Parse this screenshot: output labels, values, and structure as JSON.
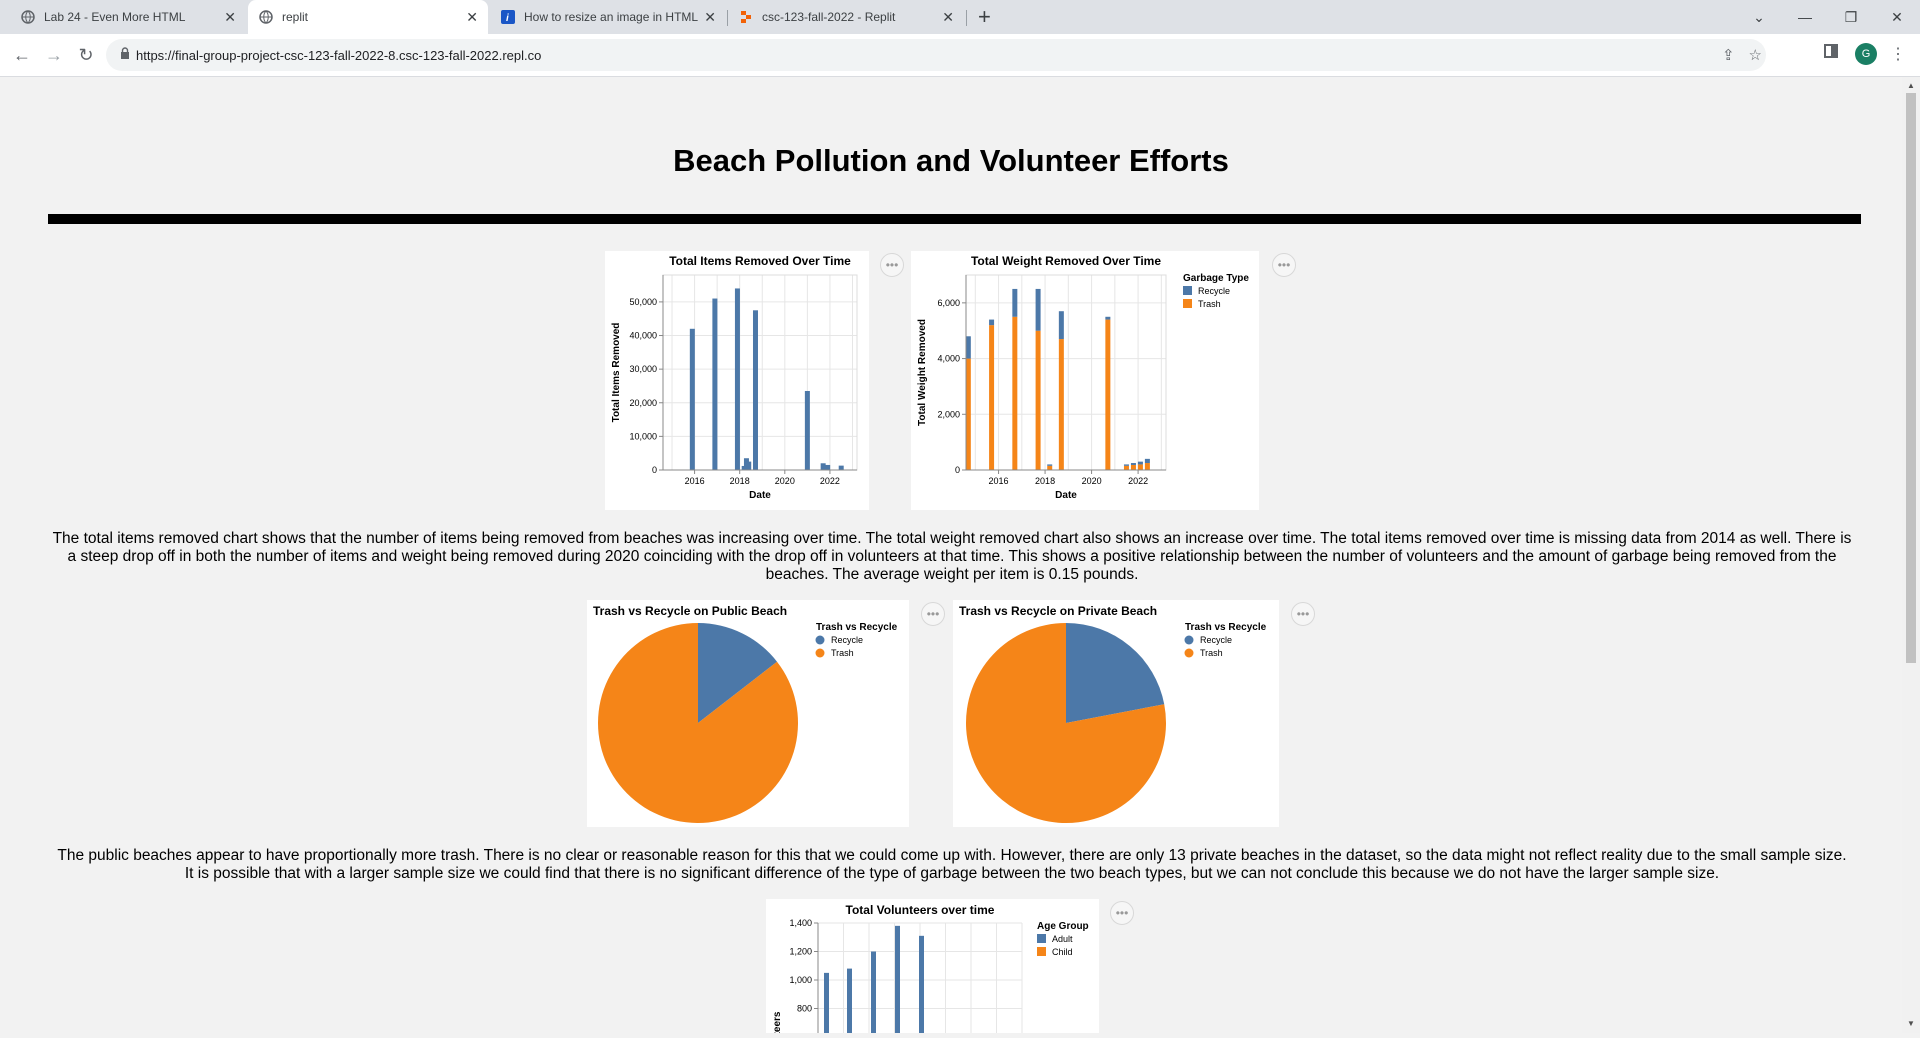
{
  "browser": {
    "tabs": [
      {
        "title": "Lab 24 - Even More HTML",
        "icon": "globe-icon"
      },
      {
        "title": "replit",
        "icon": "globe-icon"
      },
      {
        "title": "How to resize an image in HTML",
        "icon": "info-icon"
      },
      {
        "title": "csc-123-fall-2022 - Replit",
        "icon": "replit-icon"
      }
    ],
    "url": "https://final-group-project-csc-123-fall-2022-8.csc-123-fall-2022.repl.co",
    "avatar_letter": "G"
  },
  "page": {
    "title": "Beach Pollution and Volunteer Efforts",
    "paragraph1": "The total items removed chart shows that the number of items being removed from beaches was increasing over time. The total weight removed chart also shows an increase over time. The total items removed over time is missing data from 2014 as well. There is a steep drop off in both the number of items and weight being removed during 2020 coinciding with the drop off in volunteers at that time. This shows a positive relationship between the number of volunteers and the amount of garbage being removed from the beaches. The average weight per item is 0.15 pounds.",
    "paragraph2": "The public beaches appear to have proportionally more trash. There is no clear or reasonable reason for this that we could come up with. However, there are only 13 private beaches in the dataset, so the data might not reflect reality due to the small sample size. It is possible that with a larger sample size we could find that there is no significant difference of the type of garbage between the two beach types, but we can not conclude this because we do not have the larger sample size."
  },
  "colors": {
    "recycle": "#4c78a8",
    "trash": "#f58518"
  },
  "chart_data": [
    {
      "type": "bar",
      "title": "Total Items Removed Over Time",
      "xlabel": "Date",
      "ylabel": "Total Items Removed",
      "xticks": [
        "2016",
        "2018",
        "2020",
        "2022"
      ],
      "yticks": [
        "0",
        "10,000",
        "20,000",
        "30,000",
        "40,000",
        "50,000"
      ],
      "xlim": [
        2014.6,
        2023.2
      ],
      "ylim": [
        0,
        58000
      ],
      "x": [
        2015.9,
        2016.9,
        2017.9,
        2018.2,
        2018.3,
        2018.4,
        2018.7,
        2021.0,
        2021.7,
        2021.9,
        2022.5
      ],
      "values": [
        42000,
        51000,
        54000,
        1200,
        3500,
        2500,
        47500,
        23500,
        2000,
        1500,
        1300
      ],
      "series_color": "#4c78a8"
    },
    {
      "type": "bar",
      "title": "Total Weight Removed Over Time",
      "xlabel": "Date",
      "ylabel": "Total Weight Removed",
      "xticks": [
        "2016",
        "2018",
        "2020",
        "2022"
      ],
      "yticks": [
        "0",
        "2,000",
        "4,000",
        "6,000"
      ],
      "xlim": [
        2014.6,
        2023.2
      ],
      "ylim": [
        0,
        7000
      ],
      "legend": {
        "title": "Garbage Type",
        "items": [
          "Recycle",
          "Trash"
        ],
        "position": "right"
      },
      "x": [
        2014.7,
        2015.7,
        2016.7,
        2017.7,
        2018.2,
        2018.7,
        2020.7,
        2021.5,
        2021.8,
        2022.1,
        2022.4
      ],
      "series": [
        {
          "name": "Trash",
          "values": [
            4000,
            5200,
            5500,
            5000,
            150,
            4700,
            5400,
            150,
            180,
            200,
            250
          ]
        },
        {
          "name": "Recycle",
          "values": [
            800,
            200,
            1000,
            1500,
            50,
            1000,
            100,
            50,
            70,
            100,
            150
          ]
        }
      ]
    },
    {
      "type": "pie",
      "title": "Trash vs Recycle on Public Beach",
      "legend": {
        "title": "Trash vs Recycle",
        "items": [
          "Recycle",
          "Trash"
        ]
      },
      "slices": [
        {
          "label": "Recycle",
          "value": 0.145
        },
        {
          "label": "Trash",
          "value": 0.855
        }
      ]
    },
    {
      "type": "pie",
      "title": "Trash vs Recycle on Private Beach",
      "legend": {
        "title": "Trash vs Recycle",
        "items": [
          "Recycle",
          "Trash"
        ]
      },
      "slices": [
        {
          "label": "Recycle",
          "value": 0.22
        },
        {
          "label": "Trash",
          "value": 0.78
        }
      ]
    },
    {
      "type": "bar",
      "title": "Total Volunteers over time",
      "ylabel": "Volunteers",
      "yticks": [
        "800",
        "1,000",
        "1,200",
        "1,400"
      ],
      "ylim": [
        0,
        1450
      ],
      "legend": {
        "title": "Age Group",
        "items": [
          "Adult",
          "Child"
        ]
      },
      "values": [
        1050,
        1080,
        1200,
        1380,
        1310
      ]
    }
  ]
}
